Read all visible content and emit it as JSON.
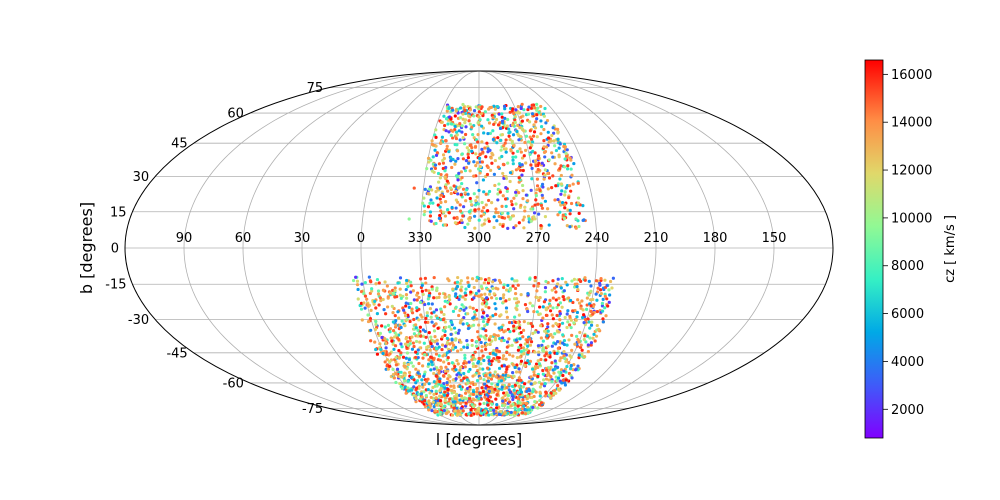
{
  "chart_data": {
    "type": "scatter",
    "projection": "mollweide",
    "title": "",
    "xlabel": "l  [degrees]",
    "ylabel": "b  [degrees]",
    "x_tick_labels": [
      "90",
      "60",
      "30",
      "0",
      "330",
      "300",
      "270",
      "240",
      "210",
      "180",
      "150"
    ],
    "y_tick_labels": [
      "-75",
      "-60",
      "-45",
      "-30",
      "-15",
      "0",
      "15",
      "30",
      "45",
      "60",
      "75"
    ],
    "x_tick_values": [
      90,
      60,
      30,
      0,
      330,
      300,
      270,
      240,
      210,
      180,
      150
    ],
    "y_tick_values": [
      -75,
      -60,
      -45,
      -30,
      -15,
      0,
      15,
      30,
      45,
      60,
      75
    ],
    "grid": true,
    "center_longitude": 300,
    "longitude_direction": "increasing to the left",
    "xlim": [
      120,
      480
    ],
    "ylim": [
      -90,
      90
    ],
    "color_by": "cz",
    "colorbar": {
      "label": "cz  [ km/s ]",
      "colormap": "rainbow",
      "range": [
        800,
        16600
      ],
      "ticks": [
        "2000",
        "4000",
        "6000",
        "8000",
        "10000",
        "12000",
        "14000",
        "16000"
      ],
      "tick_values": [
        2000,
        4000,
        6000,
        8000,
        10000,
        12000,
        14000,
        16000
      ],
      "placement": "right"
    },
    "regions": [
      {
        "name": "north",
        "b_range": [
          8,
          65
        ],
        "l_range": [
          245,
          330
        ]
      },
      {
        "name": "south",
        "b_range": [
          -80,
          -12
        ],
        "l_range": [
          230,
          365
        ]
      }
    ],
    "points": [
      {
        "l": 336,
        "b": 12,
        "cz": 9500
      },
      {
        "l": 320,
        "b": 22,
        "cz": 14500
      },
      {
        "l": 300,
        "b": 24,
        "cz": 5200
      },
      {
        "l": 285,
        "b": 30,
        "cz": 11800
      },
      {
        "l": 270,
        "b": 20,
        "cz": 15800
      },
      {
        "l": 255,
        "b": 18,
        "cz": 13200
      },
      {
        "l": 310,
        "b": 40,
        "cz": 8200
      },
      {
        "l": 295,
        "b": 45,
        "cz": 16000
      },
      {
        "l": 280,
        "b": 50,
        "cz": 6500
      },
      {
        "l": 300,
        "b": 58,
        "cz": 12500
      },
      {
        "l": 325,
        "b": 35,
        "cz": 3800
      },
      {
        "l": 265,
        "b": 38,
        "cz": 14800
      },
      {
        "l": 250,
        "b": 12,
        "cz": 9000
      },
      {
        "l": 335,
        "b": 25,
        "cz": 15000
      },
      {
        "l": 305,
        "b": 15,
        "cz": 7200
      },
      {
        "l": 360,
        "b": -20,
        "cz": 15200
      },
      {
        "l": 340,
        "b": -30,
        "cz": 10500
      },
      {
        "l": 320,
        "b": -45,
        "cz": 5800
      },
      {
        "l": 300,
        "b": -55,
        "cz": 13500
      },
      {
        "l": 280,
        "b": -35,
        "cz": 16200
      },
      {
        "l": 260,
        "b": -25,
        "cz": 8800
      },
      {
        "l": 240,
        "b": -40,
        "cz": 14000
      },
      {
        "l": 235,
        "b": -60,
        "cz": 4500
      },
      {
        "l": 300,
        "b": -75,
        "cz": 12000
      },
      {
        "l": 330,
        "b": -65,
        "cz": 15500
      },
      {
        "l": 270,
        "b": -60,
        "cz": 9800
      },
      {
        "l": 350,
        "b": -50,
        "cz": 11500
      },
      {
        "l": 310,
        "b": -20,
        "cz": 6800
      },
      {
        "l": 250,
        "b": -15,
        "cz": 13800
      },
      {
        "l": 290,
        "b": -70,
        "cz": 16400
      }
    ]
  }
}
